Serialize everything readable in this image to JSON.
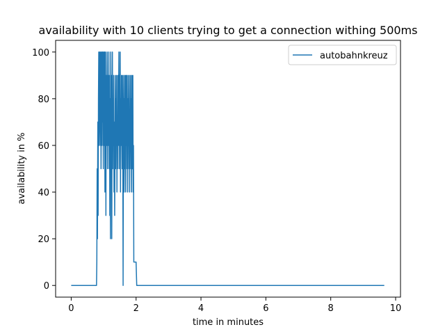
{
  "chart_data": {
    "type": "line",
    "title": "availability with 10 clients trying to get a connection withing 500ms",
    "xlabel": "time in minutes",
    "ylabel": "availability in %",
    "xlim": [
      -0.48,
      10.15
    ],
    "ylim": [
      -5,
      105
    ],
    "x_ticks": [
      0,
      2,
      4,
      6,
      8,
      10
    ],
    "y_ticks": [
      0,
      20,
      40,
      60,
      80,
      100
    ],
    "x_tick_labels": [
      "0",
      "2",
      "4",
      "6",
      "8",
      "10"
    ],
    "y_tick_labels": [
      "0",
      "20",
      "40",
      "60",
      "80",
      "100"
    ],
    "grid": false,
    "legend": {
      "position": "top-right",
      "entries": [
        "autobahnkreuz"
      ]
    },
    "series": [
      {
        "name": "autobahnkreuz",
        "color": "#1f77b4",
        "x": [
          0.0,
          0.78,
          0.79,
          0.8,
          0.81,
          0.82,
          0.83,
          0.84,
          0.85,
          0.86,
          0.87,
          0.88,
          0.89,
          0.9,
          0.91,
          0.92,
          0.93,
          0.94,
          0.95,
          0.96,
          0.97,
          0.98,
          0.99,
          1.0,
          1.01,
          1.02,
          1.03,
          1.04,
          1.05,
          1.06,
          1.07,
          1.08,
          1.09,
          1.1,
          1.11,
          1.12,
          1.13,
          1.14,
          1.15,
          1.16,
          1.17,
          1.18,
          1.19,
          1.2,
          1.21,
          1.22,
          1.23,
          1.24,
          1.25,
          1.26,
          1.27,
          1.28,
          1.29,
          1.3,
          1.31,
          1.32,
          1.33,
          1.34,
          1.35,
          1.36,
          1.37,
          1.38,
          1.39,
          1.4,
          1.41,
          1.42,
          1.43,
          1.44,
          1.45,
          1.46,
          1.47,
          1.48,
          1.49,
          1.5,
          1.51,
          1.52,
          1.53,
          1.54,
          1.55,
          1.56,
          1.57,
          1.58,
          1.59,
          1.6,
          1.61,
          1.62,
          1.63,
          1.64,
          1.65,
          1.66,
          1.67,
          1.68,
          1.69,
          1.7,
          1.71,
          1.72,
          1.73,
          1.74,
          1.75,
          1.76,
          1.77,
          1.78,
          1.79,
          1.8,
          1.81,
          1.82,
          1.83,
          1.84,
          1.85,
          1.86,
          1.87,
          1.88,
          1.89,
          1.9,
          1.91,
          1.92,
          1.93,
          1.94,
          1.95,
          1.96,
          1.97,
          1.98,
          1.99,
          2.0,
          2.02,
          2.05,
          9.65
        ],
        "y": [
          0,
          0,
          10,
          50,
          20,
          70,
          30,
          80,
          100,
          60,
          90,
          100,
          70,
          60,
          100,
          50,
          80,
          100,
          60,
          100,
          70,
          100,
          50,
          90,
          100,
          60,
          100,
          40,
          80,
          100,
          30,
          90,
          60,
          80,
          100,
          50,
          90,
          60,
          70,
          100,
          50,
          90,
          30,
          80,
          20,
          100,
          60,
          90,
          20,
          70,
          100,
          50,
          80,
          60,
          90,
          40,
          70,
          30,
          60,
          90,
          50,
          80,
          60,
          90,
          40,
          70,
          50,
          90,
          60,
          80,
          100,
          50,
          90,
          60,
          100,
          40,
          80,
          60,
          90,
          70,
          50,
          90,
          60,
          0,
          70,
          90,
          40,
          80,
          50,
          90,
          60,
          40,
          90,
          60,
          90,
          50,
          80,
          40,
          90,
          60,
          80,
          50,
          90,
          40,
          70,
          60,
          90,
          50,
          80,
          40,
          90,
          60,
          50,
          90,
          40,
          60,
          10,
          10,
          10,
          10,
          10,
          10,
          10,
          10,
          0,
          0,
          0
        ]
      }
    ]
  }
}
